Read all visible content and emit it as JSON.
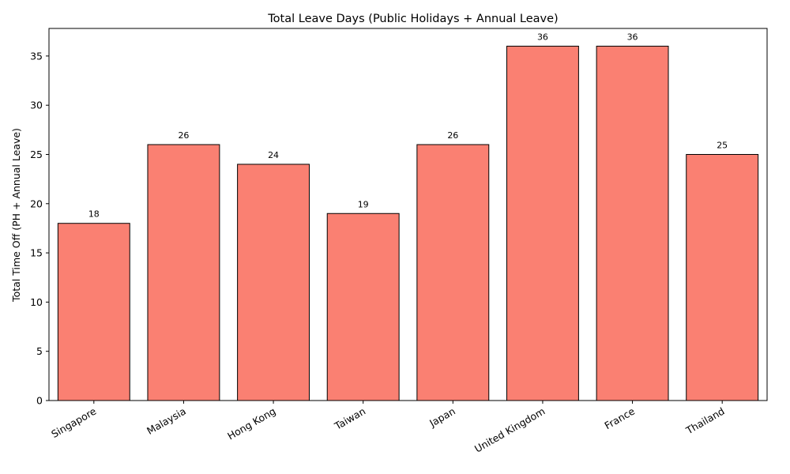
{
  "chart_data": {
    "type": "bar",
    "title": "Total Leave Days (Public Holidays + Annual Leave)",
    "xlabel": "",
    "ylabel": "Total Time Off (PH + Annual Leave)",
    "categories": [
      "Singapore",
      "Malaysia",
      "Hong Kong",
      "Taiwan",
      "Japan",
      "United Kingdom",
      "France",
      "Thailand"
    ],
    "values": [
      18,
      26,
      24,
      19,
      26,
      36,
      36,
      25
    ],
    "ylim": [
      0,
      37.8
    ],
    "yticks": [
      0,
      5,
      10,
      15,
      20,
      25,
      30,
      35
    ],
    "grid": false,
    "legend": "none",
    "bar_color": "#fa8072",
    "bar_edge_color": "#000000"
  }
}
